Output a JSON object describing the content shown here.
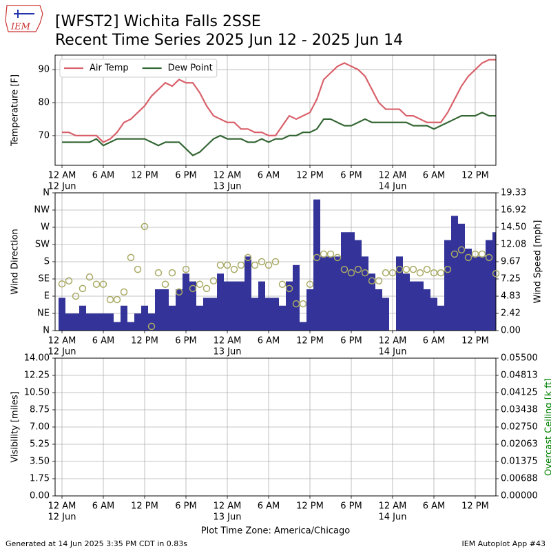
{
  "header": {
    "logo_text": "IEM",
    "title": "[WFST2] Wichita Falls 2SSE",
    "subtitle": "Recent Time Series 2025 Jun 12 - 2025 Jun 14"
  },
  "footer": {
    "left": "Generated at 14 Jun 2025 3:35 PM CDT in 0.83s",
    "right": "IEM Autoplot App #43"
  },
  "chart_data": [
    {
      "type": "line",
      "ylabel": "Temperature [F]",
      "grid": true,
      "legend": "upper left",
      "x": [
        0,
        1,
        2,
        3,
        4,
        5,
        6,
        7,
        8,
        9,
        10,
        11,
        12,
        13,
        14,
        15,
        16,
        17,
        18,
        19,
        20,
        21,
        22,
        23,
        24,
        25,
        26,
        27,
        28,
        29,
        30,
        31,
        32,
        33,
        34,
        35,
        36,
        37,
        38,
        39,
        40,
        41,
        42,
        43,
        44,
        45,
        46,
        47,
        48,
        49,
        50,
        51,
        52,
        53,
        54,
        55,
        56,
        57,
        58,
        59,
        60,
        61,
        62,
        63
      ],
      "xlim": [
        -1,
        63
      ],
      "xticks": [
        {
          "value": 0,
          "label": "12 AM"
        },
        {
          "value": 6,
          "label": "6 AM"
        },
        {
          "value": 12,
          "label": "12 PM"
        },
        {
          "value": 18,
          "label": "6 PM"
        },
        {
          "value": 24,
          "label": "12 AM"
        },
        {
          "value": 30,
          "label": "6 AM"
        },
        {
          "value": 36,
          "label": "12 PM"
        },
        {
          "value": 42,
          "label": "6 PM"
        },
        {
          "value": 48,
          "label": "12 AM"
        },
        {
          "value": 54,
          "label": "6 AM"
        },
        {
          "value": 60,
          "label": "12 PM"
        }
      ],
      "x_date_labels": [
        {
          "value": 0,
          "label": "12 Jun"
        },
        {
          "value": 24,
          "label": "13 Jun"
        },
        {
          "value": 48,
          "label": "14 Jun"
        }
      ],
      "ylim": [
        61,
        94.4
      ],
      "yticks": [
        70,
        80,
        90
      ],
      "series": [
        {
          "name": "Air Temp",
          "color": "#d9606a",
          "values": [
            71,
            71,
            70,
            70,
            70,
            70,
            68,
            69,
            71,
            74,
            75,
            77,
            79,
            82,
            84,
            86,
            85,
            87,
            86,
            86,
            83,
            79,
            76,
            75,
            74,
            74,
            72,
            72,
            71,
            71,
            70,
            70,
            73,
            76,
            75,
            76,
            77,
            81,
            87,
            89,
            91,
            92,
            91,
            90,
            88,
            84,
            80,
            78,
            78,
            78,
            76,
            76,
            75,
            74,
            74,
            74,
            77,
            81,
            85,
            88,
            90,
            92,
            93,
            93
          ]
        },
        {
          "name": "Dew Point",
          "color": "#336633",
          "values": [
            68,
            68,
            68,
            68,
            68,
            69,
            67,
            68,
            69,
            69,
            69,
            69,
            69,
            68,
            67,
            68,
            68,
            68,
            66,
            64,
            65,
            67,
            69,
            70,
            69,
            69,
            69,
            68,
            68,
            69,
            68,
            69,
            69,
            70,
            70,
            71,
            71,
            72,
            75,
            75,
            74,
            73,
            73,
            74,
            75,
            74,
            74,
            74,
            74,
            74,
            74,
            73,
            73,
            73,
            72,
            73,
            74,
            75,
            76,
            76,
            76,
            77,
            76,
            76
          ]
        }
      ]
    },
    {
      "type": "bar",
      "ylabel": "Wind Direction",
      "y2label": "Wind Speed [mph]",
      "grid": true,
      "x": [
        0,
        1,
        2,
        3,
        4,
        5,
        6,
        7,
        8,
        9,
        10,
        11,
        12,
        13,
        14,
        15,
        16,
        17,
        18,
        19,
        20,
        21,
        22,
        23,
        24,
        25,
        26,
        27,
        28,
        29,
        30,
        31,
        32,
        33,
        34,
        35,
        36,
        37,
        38,
        39,
        40,
        41,
        42,
        43,
        44,
        45,
        46,
        47,
        48,
        49,
        50,
        51,
        52,
        53,
        54,
        55,
        56,
        57,
        58,
        59,
        60,
        61,
        62,
        63
      ],
      "xlim": [
        -1,
        63
      ],
      "xticks": [
        {
          "value": 0,
          "label": "12 AM"
        },
        {
          "value": 6,
          "label": "6 AM"
        },
        {
          "value": 12,
          "label": "12 PM"
        },
        {
          "value": 18,
          "label": "6 PM"
        },
        {
          "value": 24,
          "label": "12 AM"
        },
        {
          "value": 30,
          "label": "6 AM"
        },
        {
          "value": 36,
          "label": "12 PM"
        },
        {
          "value": 42,
          "label": "6 PM"
        },
        {
          "value": 48,
          "label": "12 AM"
        },
        {
          "value": 54,
          "label": "6 AM"
        },
        {
          "value": 60,
          "label": "12 PM"
        }
      ],
      "x_date_labels": [
        {
          "value": 0,
          "label": "12 Jun"
        },
        {
          "value": 24,
          "label": "13 Jun"
        },
        {
          "value": 48,
          "label": "14 Jun"
        }
      ],
      "ylim": [
        0,
        360
      ],
      "yticks": [
        {
          "value": 0,
          "label": "N"
        },
        {
          "value": 45,
          "label": "NE"
        },
        {
          "value": 90,
          "label": "E"
        },
        {
          "value": 135,
          "label": "SE"
        },
        {
          "value": 180,
          "label": "S"
        },
        {
          "value": 225,
          "label": "SW"
        },
        {
          "value": 270,
          "label": "W"
        },
        {
          "value": 315,
          "label": "NW"
        },
        {
          "value": 360,
          "label": "N"
        }
      ],
      "y2lim": [
        0,
        19.33
      ],
      "y2ticks": [
        {
          "value": 0,
          "label": "0.00"
        },
        2.42,
        4.83,
        7.25,
        9.67,
        12.08,
        {
          "value": 14.5,
          "label": "14.50"
        },
        16.92,
        19.33
      ],
      "series": [
        {
          "type": "bar",
          "axis": "y2",
          "color": "#333399",
          "values": [
            4.6,
            2.4,
            2.4,
            3.5,
            2.4,
            2.4,
            2.4,
            2.4,
            1.2,
            3.5,
            1.2,
            2.4,
            3.5,
            2.4,
            5.8,
            5.8,
            3.5,
            5.8,
            8.0,
            6.9,
            3.5,
            4.6,
            4.6,
            8.0,
            6.9,
            6.9,
            6.9,
            10.4,
            4.6,
            6.9,
            4.6,
            4.6,
            3.5,
            6.9,
            9.2,
            1.2,
            5.8,
            18.4,
            10.4,
            10.4,
            10.4,
            13.8,
            13.8,
            12.7,
            10.4,
            8.0,
            5.8,
            4.6,
            null,
            10.4,
            8.0,
            6.9,
            6.9,
            5.8,
            4.6,
            3.5,
            12.7,
            16.1,
            15.0,
            11.5,
            10.4,
            10.4,
            12.7,
            13.8
          ]
        },
        {
          "type": "scatter",
          "color": "#aaaa66",
          "values": [
            122,
            130,
            90,
            110,
            140,
            121,
            121,
            81,
            81,
            101,
            191,
            160,
            272,
            11,
            151,
            121,
            151,
            101,
            160,
            110,
            121,
            110,
            130,
            171,
            171,
            160,
            171,
            191,
            171,
            180,
            171,
            180,
            121,
            110,
            70,
            70,
            121,
            191,
            200,
            200,
            191,
            160,
            151,
            160,
            151,
            130,
            130,
            151,
            151,
            160,
            160,
            160,
            151,
            160,
            151,
            151,
            160,
            200,
            211,
            191,
            200,
            200,
            191,
            149
          ]
        }
      ]
    },
    {
      "type": "line",
      "ylabel": "Visibility [miles]",
      "y2label": "Overcast Ceiling [k ft]",
      "y2label_color": "#008000",
      "xlabel": "Plot Time Zone: America/Chicago",
      "grid": true,
      "xlim": [
        -1,
        63
      ],
      "xticks": [
        {
          "value": 0,
          "label": "12 AM"
        },
        {
          "value": 6,
          "label": "6 AM"
        },
        {
          "value": 12,
          "label": "12 PM"
        },
        {
          "value": 18,
          "label": "6 PM"
        },
        {
          "value": 24,
          "label": "12 AM"
        },
        {
          "value": 30,
          "label": "6 AM"
        },
        {
          "value": 36,
          "label": "12 PM"
        },
        {
          "value": 42,
          "label": "6 PM"
        },
        {
          "value": 48,
          "label": "12 AM"
        },
        {
          "value": 54,
          "label": "6 AM"
        },
        {
          "value": 60,
          "label": "12 PM"
        }
      ],
      "x_date_labels": [
        {
          "value": 0,
          "label": "12 Jun"
        },
        {
          "value": 24,
          "label": "13 Jun"
        },
        {
          "value": 48,
          "label": "14 Jun"
        }
      ],
      "ylim": [
        0,
        14
      ],
      "yticks": [
        {
          "value": 0,
          "label": "0.00"
        },
        1.75,
        {
          "value": 3.5,
          "label": "3.50"
        },
        5.25,
        {
          "value": 7,
          "label": "7.00"
        },
        8.75,
        {
          "value": 10.5,
          "label": "10.50"
        },
        12.25,
        {
          "value": 14,
          "label": "14.00"
        }
      ],
      "y2lim": [
        0,
        0.055
      ],
      "y2ticks": [
        {
          "value": 0,
          "label": "0.00000"
        },
        {
          "value": 0.006875,
          "label": "0.00688"
        },
        {
          "value": 0.01375,
          "label": "0.01375"
        },
        {
          "value": 0.020625,
          "label": "0.02063"
        },
        {
          "value": 0.0275,
          "label": "0.02750"
        },
        {
          "value": 0.034375,
          "label": "0.03438"
        },
        {
          "value": 0.04125,
          "label": "0.04125"
        },
        {
          "value": 0.048125,
          "label": "0.04813"
        },
        {
          "value": 0.055,
          "label": "0.05500"
        }
      ],
      "series": []
    }
  ]
}
